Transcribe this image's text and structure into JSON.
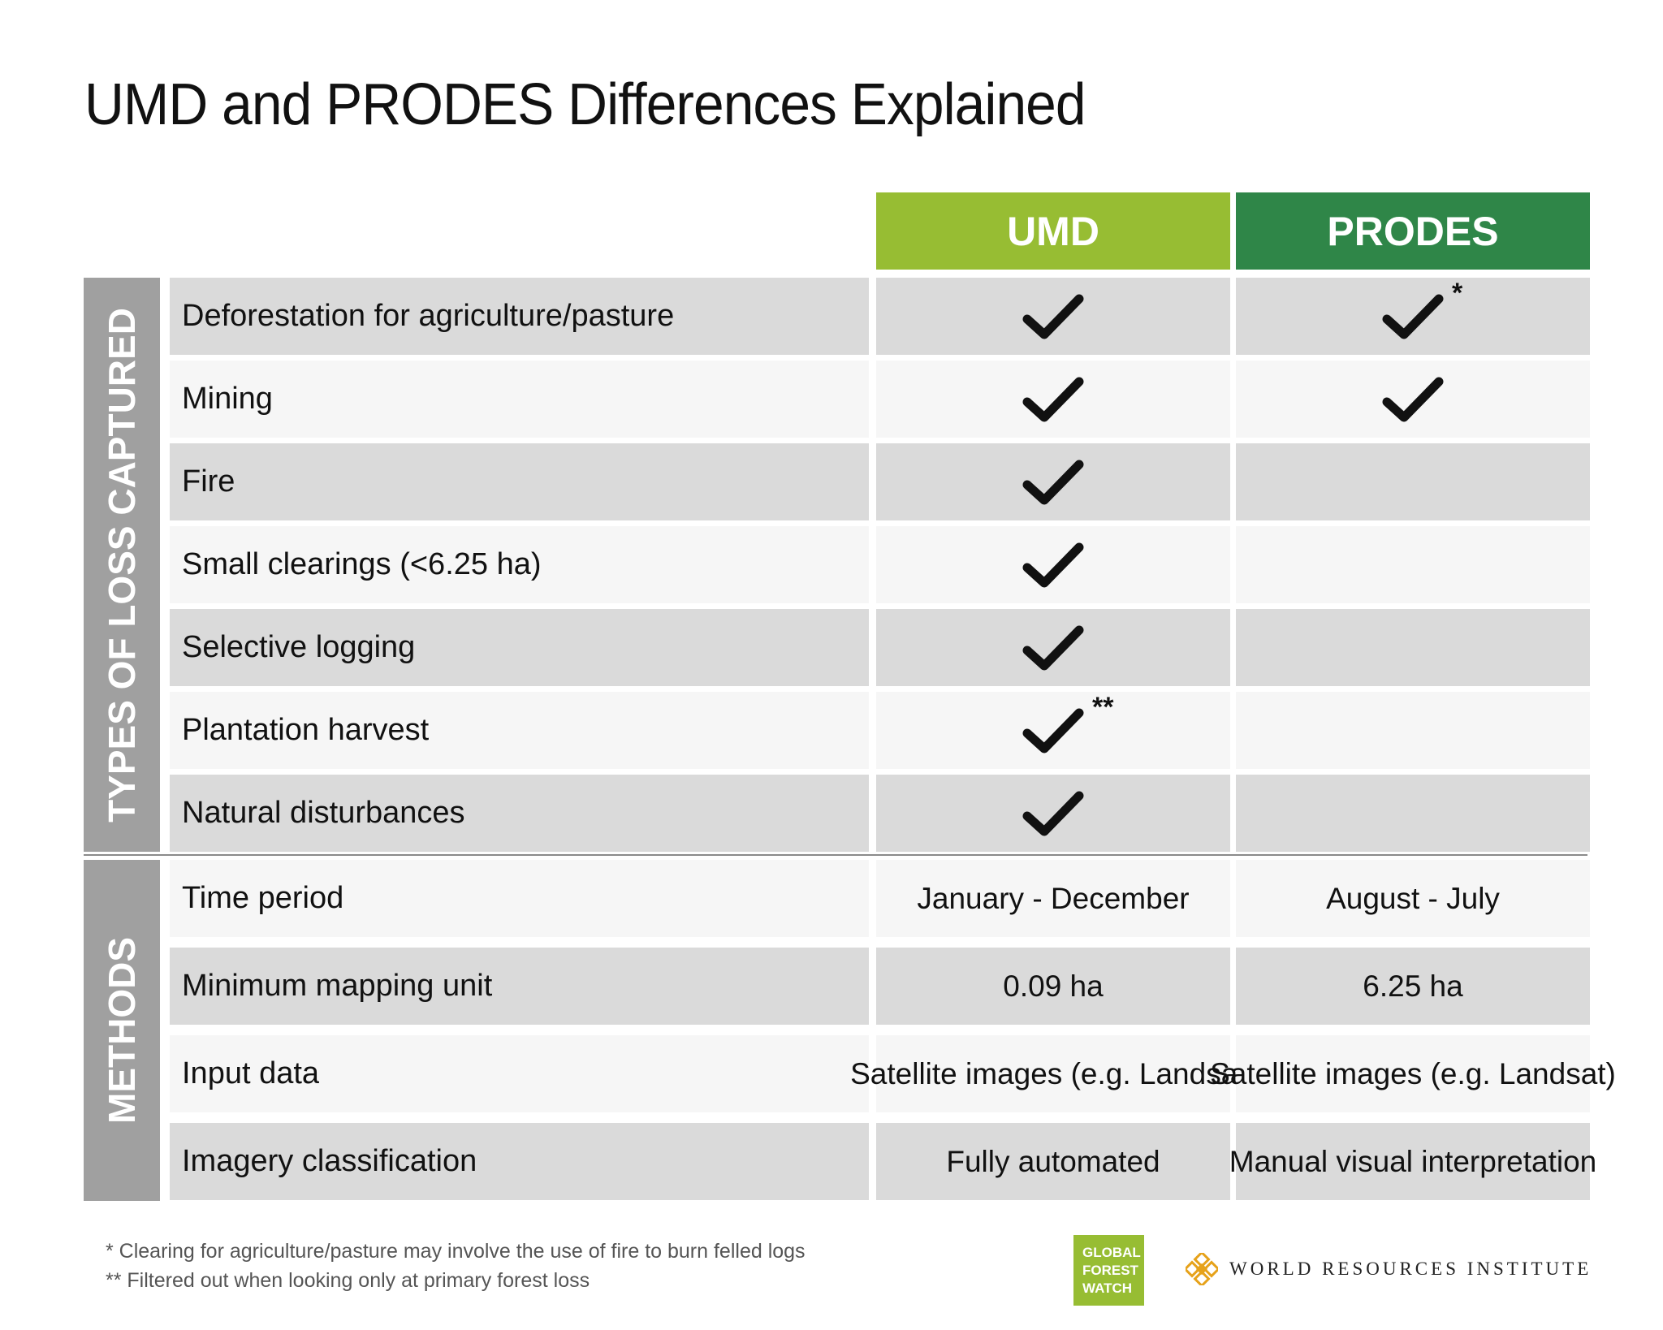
{
  "title": "UMD and PRODES Differences Explained",
  "columns": {
    "umd": "UMD",
    "prodes": "PRODES"
  },
  "sections": {
    "loss": "TYPES OF LOSS CAPTURED",
    "methods": "METHODS"
  },
  "loss_rows": [
    {
      "label": "Deforestation for agriculture/pasture",
      "umd": true,
      "prodes": true,
      "prodes_mark": "*"
    },
    {
      "label": "Mining",
      "umd": true,
      "prodes": true
    },
    {
      "label": "Fire",
      "umd": true,
      "prodes": false
    },
    {
      "label": "Small clearings  (<6.25 ha)",
      "umd": true,
      "prodes": false
    },
    {
      "label": "Selective logging",
      "umd": true,
      "prodes": false
    },
    {
      "label": "Plantation harvest",
      "umd": true,
      "prodes": false,
      "umd_mark": "**"
    },
    {
      "label": "Natural disturbances",
      "umd": true,
      "prodes": false
    }
  ],
  "method_rows": [
    {
      "label": "Time period",
      "umd": "January - December",
      "prodes": "August - July"
    },
    {
      "label": "Minimum mapping unit",
      "umd": "0.09 ha",
      "prodes": "6.25 ha"
    },
    {
      "label": "Input data",
      "umd": "Satellite images (e.g. Landsat)",
      "prodes": "Satellite images (e.g. Landsat)"
    },
    {
      "label": "Imagery classification",
      "umd": "Fully automated",
      "prodes": "Manual visual interpretation"
    }
  ],
  "footnotes": [
    "* Clearing for agriculture/pasture may involve the use of fire to burn felled logs",
    "** Filtered out when looking only at primary forest loss"
  ],
  "logos": {
    "gfw": [
      "GLOBAL",
      "FOREST",
      "WATCH"
    ],
    "wri": "WORLD RESOURCES INSTITUTE"
  },
  "colors": {
    "umd_green": "#97bd33",
    "prodes_green": "#2f8648",
    "section_gray": "#a0a0a0",
    "row_dark": "#dadada",
    "row_light": "#f6f6f6"
  }
}
